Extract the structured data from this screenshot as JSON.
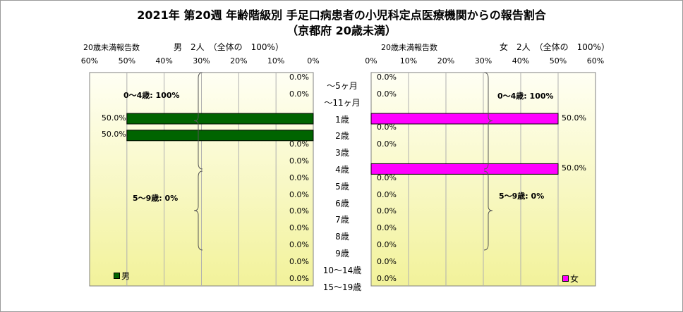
{
  "title_line1": "2021年 第20週 年齢階級別 手足口病患者の小児科定点医療機関からの報告割合",
  "title_line2": "（京都府 20歳未満）",
  "chart_data": {
    "type": "bar",
    "orientation": "horizontal",
    "categories": [
      "～5ヶ月",
      "～11ヶ月",
      "1歳",
      "2歳",
      "3歳",
      "4歳",
      "5歳",
      "6歳",
      "7歳",
      "8歳",
      "9歳",
      "10～14歳",
      "15～19歳"
    ],
    "xlim": [
      0,
      60
    ],
    "x_ticks": [
      "0%",
      "10%",
      "20%",
      "30%",
      "40%",
      "50%",
      "60%"
    ],
    "grid": true,
    "panels": [
      {
        "side": "left",
        "header_label": "20歳未満報告数",
        "header_total": "男　2人　（全体の　100%）",
        "legend": "男",
        "color": "#006400",
        "values": [
          0.0,
          0.0,
          50.0,
          50.0,
          0.0,
          0.0,
          0.0,
          0.0,
          0.0,
          0.0,
          0.0,
          0.0,
          0.0
        ],
        "value_labels": [
          "0.0%",
          "0.0%",
          "50.0%",
          "50.0%",
          "0.0%",
          "0.0%",
          "0.0%",
          "0.0%",
          "0.0%",
          "0.0%",
          "0.0%",
          "0.0%",
          "0.0%"
        ],
        "annotations": [
          "0～4歳: 100%",
          "5～9歳: 0%"
        ]
      },
      {
        "side": "right",
        "header_label": "20歳未満報告数",
        "header_total": "女　2人　（全体の　100%）",
        "legend": "女",
        "color": "#ff00ff",
        "values": [
          0.0,
          0.0,
          50.0,
          0.0,
          0.0,
          50.0,
          0.0,
          0.0,
          0.0,
          0.0,
          0.0,
          0.0,
          0.0
        ],
        "value_labels": [
          "0.0%",
          "0.0%",
          "50.0%",
          "0.0%",
          "0.0%",
          "50.0%",
          "0.0%",
          "0.0%",
          "0.0%",
          "0.0%",
          "0.0%",
          "0.0%",
          "0.0%"
        ],
        "annotations": [
          "0～4歳: 100%",
          "5～9歳: 0%"
        ]
      }
    ]
  }
}
